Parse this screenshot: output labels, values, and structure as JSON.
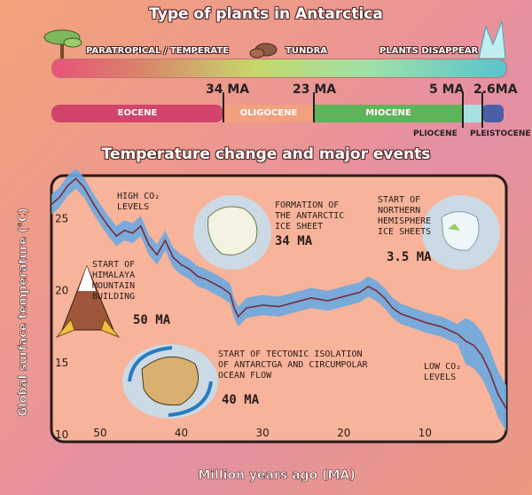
{
  "plants": {
    "title": "Type of plants  in Antarctica",
    "zones": [
      "PARATROPICAL / TEMPERATE",
      "TUNDRA",
      "PLANTS DISAPPEAR"
    ],
    "gradient": [
      "#e8527a",
      "#c6d86a",
      "#9fe0a8",
      "#58c4cc"
    ]
  },
  "epochs": {
    "boundaries": [
      "34 MA",
      "23 MA",
      "5 MA",
      "2.6MA"
    ],
    "items": [
      {
        "name": "EOCENE",
        "color": "#d1456a"
      },
      {
        "name": "OLIGOCENE",
        "color": "#f2a07e"
      },
      {
        "name": "MIOCENE",
        "color": "#5fb35a"
      },
      {
        "name": "PLIOCENE",
        "color": "#a9dfe0"
      },
      {
        "name": "PLEISTOCENE",
        "color": "#4a5fa8"
      }
    ]
  },
  "events": [
    {
      "text": "HIGH CO₂\nLEVELS",
      "ma": ""
    },
    {
      "text": "FORMATION OF\nTHE ANTARCTIC\nICE SHEET",
      "ma": "34 MA"
    },
    {
      "text": "START OF\nNORTHERN\nHEMISPHERE\nICE SHEETS",
      "ma": "3.5 MA"
    },
    {
      "text": "START OF\nHIMALAYA\nMOUNTAIN\nBUILDING",
      "ma": "50 MA"
    },
    {
      "text": "START OF TECTONIC ISOLATION\nOF ANTARCTGA AND CIRCUMPOLAR\nOCEAN FLOW",
      "ma": "40 MA"
    },
    {
      "text": "LOW CO₂\nLEVELS",
      "ma": ""
    }
  ],
  "chart_data": {
    "type": "line",
    "title": "Temperature change and major events",
    "xlabel": "Million years ago (MA)",
    "ylabel": "Global surface temperature (°C)",
    "xlim": [
      56,
      0
    ],
    "ylim": [
      9.5,
      28
    ],
    "xticks": [
      50,
      40,
      30,
      20,
      10
    ],
    "yticks": [
      10,
      15,
      20,
      25
    ],
    "grid": false,
    "series": [
      {
        "x": [
          56,
          55,
          54,
          53,
          52,
          51,
          50,
          49,
          48,
          47,
          46,
          45,
          44,
          43,
          42,
          41,
          40,
          39,
          38,
          37,
          36,
          35,
          34,
          33.5,
          33,
          32,
          30,
          28,
          26,
          24,
          22,
          20,
          18,
          17,
          16,
          15,
          14,
          13,
          12,
          10,
          8,
          6,
          5,
          4,
          3,
          2,
          1,
          0
        ],
        "y": [
          26.0,
          26.5,
          27.3,
          27.8,
          27.2,
          26.2,
          25.3,
          24.5,
          23.8,
          24.2,
          24.0,
          24.5,
          23.2,
          22.5,
          23.5,
          22.3,
          21.8,
          21.5,
          21.0,
          20.8,
          20.5,
          20.2,
          19.8,
          18.8,
          18.2,
          18.8,
          19.0,
          18.9,
          19.2,
          19.5,
          19.3,
          19.6,
          19.9,
          20.3,
          20.0,
          19.5,
          18.8,
          18.4,
          18.2,
          17.8,
          17.5,
          17.0,
          16.5,
          16.2,
          15.5,
          14.3,
          12.8,
          11.8
        ]
      }
    ]
  }
}
